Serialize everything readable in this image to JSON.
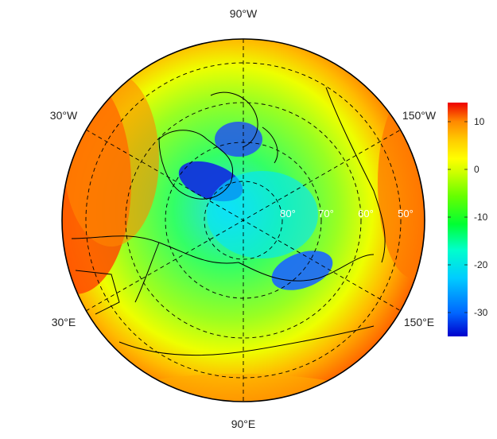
{
  "map": {
    "projection": "north-polar stereographic",
    "longitude_labels": {
      "top": "90°W",
      "upper_left": "30°W",
      "upper_right": "150°W",
      "lower_left": "30°E",
      "lower_right": "150°E",
      "bottom": "90°E"
    },
    "latitude_labels": [
      "80°",
      "70°",
      "60°",
      "50°"
    ],
    "lat_label_color": "#ffffff",
    "graticule_style": "dashed"
  },
  "colorbar": {
    "ticks": [
      "10",
      "0",
      "-10",
      "-20",
      "-30"
    ],
    "tick_values": [
      10,
      0,
      -10,
      -20,
      -30
    ],
    "range": [
      -35,
      14
    ],
    "colors": [
      "#0000cc",
      "#0066ff",
      "#00ccff",
      "#00ffcc",
      "#00ff33",
      "#66ff00",
      "#ccff00",
      "#ffff00",
      "#ffcc00",
      "#ff8800",
      "#ff3300",
      "#ee0000"
    ]
  }
}
